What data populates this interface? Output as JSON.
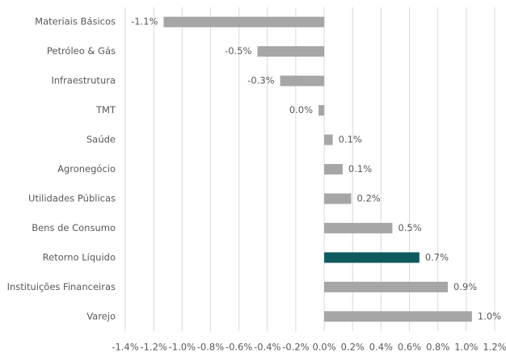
{
  "chart_data": {
    "type": "bar",
    "orientation": "horizontal",
    "categories": [
      "Materiais Básicos",
      "Petróleo & Gás",
      "Infraestrutura",
      "TMT",
      "Saúde",
      "Agronegócio",
      "Utilidades Públicas",
      "Bens de Consumo",
      "Retorno Líquido",
      "Instituições Financeiras",
      "Varejo"
    ],
    "values": [
      -1.13,
      -0.47,
      -0.31,
      -0.04,
      0.06,
      0.13,
      0.19,
      0.48,
      0.67,
      0.87,
      1.04
    ],
    "value_labels": [
      "-1.1%",
      "-0.5%",
      "-0.3%",
      "0.0%",
      "0.1%",
      "0.1%",
      "0.2%",
      "0.5%",
      "0.7%",
      "0.9%",
      "1.0%"
    ],
    "colors": [
      "#a6a6a6",
      "#a6a6a6",
      "#a6a6a6",
      "#a6a6a6",
      "#a6a6a6",
      "#a6a6a6",
      "#a6a6a6",
      "#a6a6a6",
      "#0e5a5e",
      "#a6a6a6",
      "#a6a6a6"
    ],
    "xlim": [
      -1.4,
      1.2
    ],
    "xticks": [
      {
        "value": -1.4,
        "label": "-1.4%"
      },
      {
        "value": -1.2,
        "label": "-1.2%"
      },
      {
        "value": -1.0,
        "label": "-1.0%"
      },
      {
        "value": -0.8,
        "label": "-0.8%"
      },
      {
        "value": -0.6,
        "label": "-0.6%"
      },
      {
        "value": -0.4,
        "label": "-0.4%"
      },
      {
        "value": -0.2,
        "label": "-0.2%"
      },
      {
        "value": 0,
        "label": "0.0%"
      },
      {
        "value": 0.2,
        "label": "0.2%"
      },
      {
        "value": 0.4,
        "label": "0.4%"
      },
      {
        "value": 0.6,
        "label": "0.6%"
      },
      {
        "value": 0.8,
        "label": "0.8%"
      },
      {
        "value": 1.0,
        "label": "1.0%"
      },
      {
        "value": 1.2,
        "label": "1.2%"
      }
    ],
    "grid": true
  }
}
